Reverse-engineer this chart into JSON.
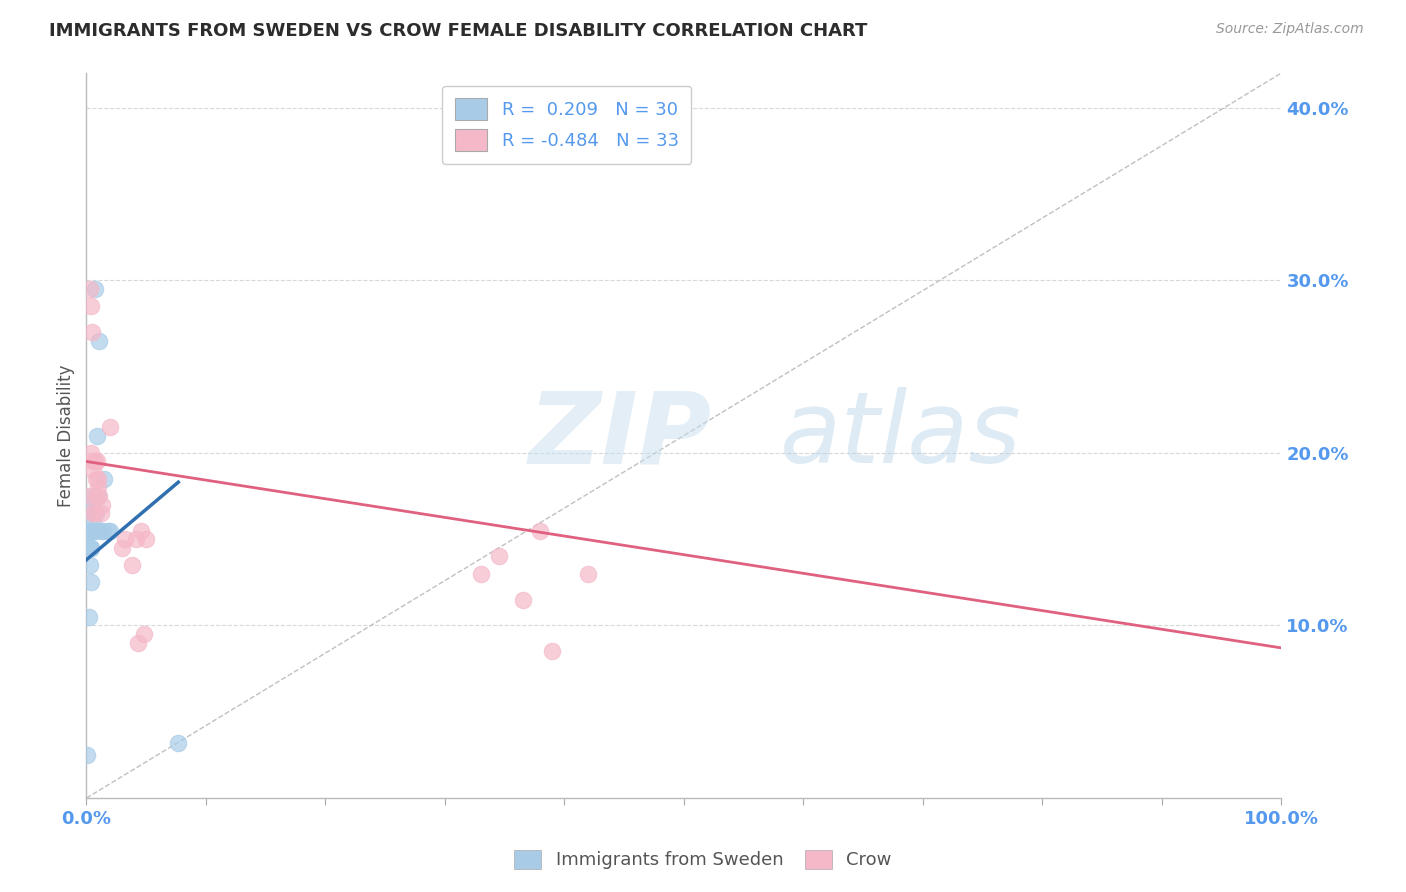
{
  "title": "IMMIGRANTS FROM SWEDEN VS CROW FEMALE DISABILITY CORRELATION CHART",
  "source": "Source: ZipAtlas.com",
  "ylabel": "Female Disability",
  "legend_blue_r": "0.209",
  "legend_blue_n": "30",
  "legend_pink_r": "-0.484",
  "legend_pink_n": "33",
  "legend_blue_label": "Immigrants from Sweden",
  "legend_pink_label": "Crow",
  "watermark_zip": "ZIP",
  "watermark_atlas": "atlas",
  "blue_scatter_x": [
    0.001,
    0.002,
    0.002,
    0.003,
    0.003,
    0.003,
    0.004,
    0.004,
    0.004,
    0.004,
    0.005,
    0.005,
    0.005,
    0.005,
    0.006,
    0.006,
    0.006,
    0.006,
    0.007,
    0.007,
    0.008,
    0.009,
    0.01,
    0.011,
    0.012,
    0.014,
    0.015,
    0.018,
    0.02,
    0.077
  ],
  "blue_scatter_y": [
    0.025,
    0.145,
    0.105,
    0.155,
    0.135,
    0.155,
    0.145,
    0.125,
    0.155,
    0.145,
    0.155,
    0.165,
    0.165,
    0.155,
    0.16,
    0.175,
    0.155,
    0.17,
    0.295,
    0.155,
    0.165,
    0.21,
    0.175,
    0.265,
    0.155,
    0.155,
    0.185,
    0.155,
    0.155,
    0.032
  ],
  "pink_scatter_x": [
    0.002,
    0.003,
    0.004,
    0.004,
    0.005,
    0.005,
    0.006,
    0.006,
    0.007,
    0.007,
    0.008,
    0.008,
    0.009,
    0.01,
    0.01,
    0.011,
    0.012,
    0.013,
    0.02,
    0.03,
    0.032,
    0.038,
    0.042,
    0.043,
    0.046,
    0.048,
    0.05,
    0.33,
    0.345,
    0.365,
    0.38,
    0.39,
    0.42
  ],
  "pink_scatter_y": [
    0.175,
    0.295,
    0.2,
    0.285,
    0.27,
    0.165,
    0.19,
    0.195,
    0.165,
    0.195,
    0.185,
    0.175,
    0.195,
    0.18,
    0.185,
    0.175,
    0.165,
    0.17,
    0.215,
    0.145,
    0.15,
    0.135,
    0.15,
    0.09,
    0.155,
    0.095,
    0.15,
    0.13,
    0.14,
    0.115,
    0.155,
    0.085,
    0.13
  ],
  "blue_line_x": [
    0.0,
    0.077
  ],
  "blue_line_y": [
    0.138,
    0.183
  ],
  "pink_line_x": [
    0.0,
    1.0
  ],
  "pink_line_y": [
    0.195,
    0.087
  ],
  "diag_line_x": [
    0.0,
    1.0
  ],
  "diag_line_y": [
    0.0,
    0.42
  ],
  "xlim": [
    0.0,
    1.0
  ],
  "ylim": [
    0.0,
    0.42
  ],
  "xtick_positions": [
    0.0,
    0.1,
    0.2,
    0.3,
    0.4,
    0.5,
    0.6,
    0.7,
    0.8,
    0.9,
    1.0
  ],
  "xtick_labels_show": [
    "0.0%",
    "",
    "",
    "",
    "",
    "",
    "",
    "",
    "",
    "",
    "100.0%"
  ],
  "right_ytick_vals": [
    0.1,
    0.2,
    0.3,
    0.4
  ],
  "right_ytick_labels": [
    "10.0%",
    "20.0%",
    "30.0%",
    "40.0%"
  ],
  "title_color": "#2c2c2c",
  "blue_color": "#a8cce8",
  "pink_color": "#f5b8c8",
  "blue_line_color": "#3070b0",
  "pink_line_color": "#e06080",
  "right_axis_color": "#5599ee",
  "grid_color": "#d8d8d8",
  "background_color": "#ffffff",
  "diag_color": "#c0c0c0"
}
